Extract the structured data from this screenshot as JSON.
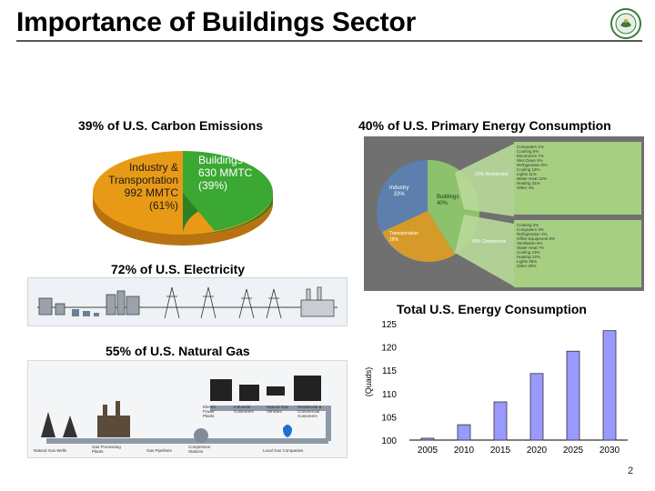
{
  "slide": {
    "title": "Importance of Buildings Sector",
    "page_number": "2"
  },
  "carbon": {
    "heading": "39% of U.S. Carbon Emissions",
    "slice1": [
      "Industry &",
      "Transportation",
      "992 MMTC",
      "(61%)"
    ],
    "slice2": [
      "Buildings",
      "630 MMTC",
      "(39%)"
    ],
    "colors": {
      "industry": "#e89a16",
      "buildings": "#3aa832"
    }
  },
  "primary": {
    "heading": "40% of U.S. Primary Energy Consumption",
    "labels": {
      "industry": [
        "Industry",
        "33%"
      ],
      "buildings": [
        "Buildings",
        "40%"
      ],
      "transportation": [
        "Transportation",
        "28%"
      ],
      "residential": "22% Residential",
      "commercial": "18% Commercial",
      "res_items": [
        "Computers 1%",
        "Cooking 5%",
        "Electronics 7%",
        "Wet Clean 5%",
        "Refrigeration 8%",
        "Cooling 12%",
        "Lights 11%",
        "Water Heat 12%",
        "Heating 31%",
        "Other 4%"
      ],
      "com_items": [
        "Cooking 2%",
        "Computers 3%",
        "Refrigeration 4%",
        "Office Equipment 6%",
        "Ventilation 6%",
        "Water Heat 7%",
        "Cooling 13%",
        "Heating 14%",
        "Lights 25%",
        "Other 20%"
      ]
    }
  },
  "electricity": {
    "heading": "72% of U.S. Electricity"
  },
  "gas": {
    "heading": "55% of U.S. Natural Gas",
    "labels": [
      "Electric Power Plants",
      "Industrial Customers",
      "Natural Gas Vehicles",
      "Residential & Commercial Customers",
      "Natural Gas Wells",
      "Gas Processing Plants",
      "Gas Pipelines",
      "Compressor Stations",
      "Local Gas Companies"
    ]
  },
  "total_chart": {
    "heading": "Total U.S. Energy Consumption"
  },
  "chart_data": {
    "type": "bar",
    "title": "Total U.S. Energy Consumption",
    "ylabel": "(Quads)",
    "xlabel": "",
    "categories": [
      "2005",
      "2010",
      "2015",
      "2020",
      "2025",
      "2030"
    ],
    "values": [
      100.4,
      103.3,
      108.2,
      114.3,
      119.1,
      123.5
    ],
    "ylim": [
      100,
      125
    ],
    "yticks": [
      100,
      105,
      110,
      115,
      120,
      125
    ],
    "bar_color": "#9999ff",
    "grid": false
  }
}
